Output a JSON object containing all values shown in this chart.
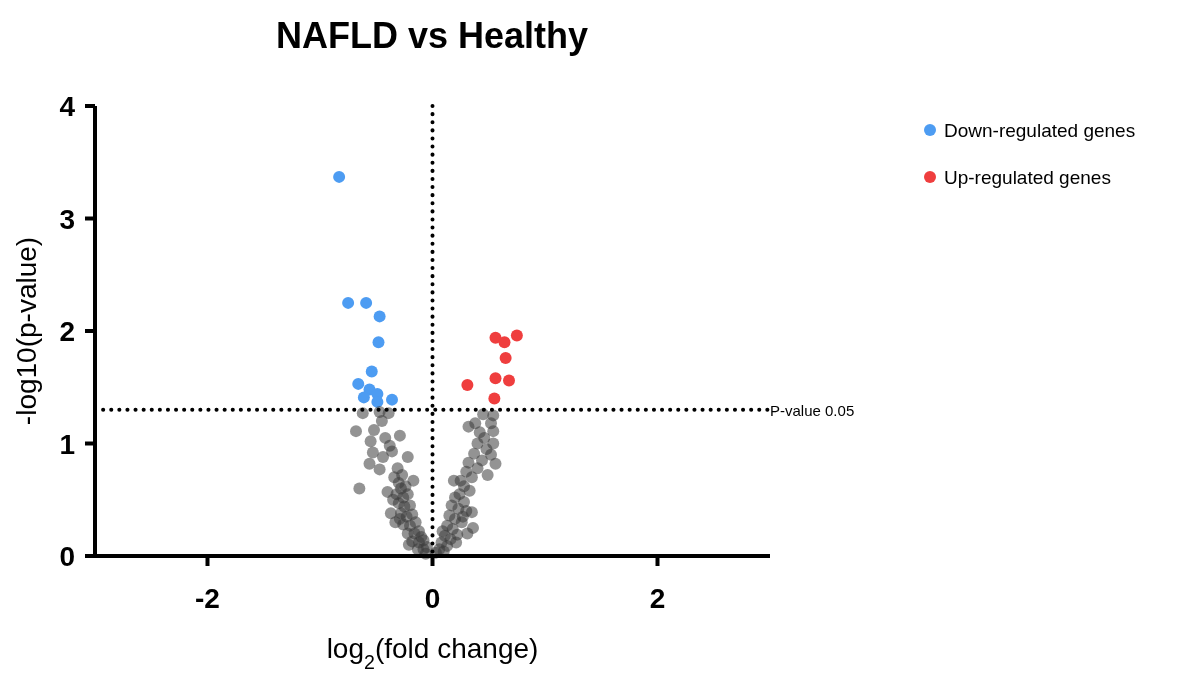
{
  "chart_data": {
    "type": "scatter",
    "title": "NAFLD vs Healthy",
    "xlabel": "log$_{2}$(fold change)",
    "ylabel": "-log10(p-value)",
    "xlim": [
      -3,
      3
    ],
    "xticks": [
      -2,
      0,
      2
    ],
    "ylim": [
      0,
      4
    ],
    "yticks": [
      0,
      1,
      2,
      3,
      4
    ],
    "marker": "circle",
    "legend": "top right",
    "grid": false,
    "ref_lines": [
      {
        "axis": "x",
        "value": 0,
        "line_style": "dotted",
        "color": "#000000"
      },
      {
        "axis": "y",
        "value": 1.301,
        "label": "P-value 0.05",
        "line_style": "dotted",
        "color": "#000000"
      }
    ],
    "series": [
      {
        "name": "Down-regulated genes",
        "color": "#4d9cf2",
        "x": [
          -0.83,
          -0.75,
          -0.59,
          -0.47,
          -0.48,
          -0.54,
          -0.66,
          -0.56,
          -0.49,
          -0.61,
          -0.49,
          -0.36
        ],
        "values": [
          3.37,
          2.25,
          2.25,
          2.13,
          1.9,
          1.64,
          1.53,
          1.48,
          1.44,
          1.41,
          1.37,
          1.39
        ]
      },
      {
        "name": "Up-regulated genes",
        "color": "#ef3e3e",
        "x": [
          0.56,
          0.64,
          0.75,
          0.65,
          0.31,
          0.56,
          0.68,
          0.55
        ],
        "values": [
          1.94,
          1.9,
          1.96,
          1.76,
          1.52,
          1.58,
          1.56,
          1.4
        ]
      },
      {
        "color": "#3a3a3a",
        "x": [
          -0.68,
          -0.65,
          -0.62,
          -0.47,
          -0.39,
          -0.52,
          -0.55,
          -0.29,
          -0.53,
          -0.56,
          -0.47,
          -0.36,
          -0.22,
          -0.31,
          -0.4,
          -0.37,
          -0.33,
          -0.17,
          -0.45,
          -0.42,
          -0.38,
          -0.44,
          -0.34,
          -0.3,
          -0.28,
          -0.32,
          -0.26,
          -0.22,
          -0.3,
          -0.25,
          -0.2,
          -0.28,
          -0.23,
          -0.18,
          -0.26,
          -0.2,
          -0.15,
          -0.22,
          -0.16,
          -0.12,
          -0.18,
          -0.12,
          -0.08,
          -0.13,
          -0.08,
          -0.05,
          -0.06,
          -0.24,
          -0.27,
          -0.35,
          -0.29,
          -0.1,
          -0.21,
          0.32,
          0.38,
          0.45,
          0.54,
          0.52,
          0.54,
          0.4,
          0.54,
          0.48,
          0.52,
          0.56,
          0.49,
          0.37,
          0.32,
          0.25,
          0.19,
          0.35,
          0.36,
          0.22,
          0.42,
          0.46,
          0.3,
          0.28,
          0.33,
          0.24,
          0.2,
          0.28,
          0.17,
          0.23,
          0.3,
          0.15,
          0.2,
          0.26,
          0.13,
          0.18,
          0.11,
          0.16,
          0.08,
          0.13,
          0.06,
          0.1,
          0.03,
          0.4,
          0.35,
          0.44,
          0.27,
          0.31,
          0.09,
          0.21
        ],
        "values": [
          1.11,
          0.6,
          1.27,
          1.28,
          1.27,
          1.12,
          1.02,
          1.07,
          0.92,
          0.82,
          0.77,
          0.93,
          0.88,
          0.78,
          0.57,
          0.38,
          0.3,
          0.67,
          1.2,
          1.05,
          0.98,
          0.88,
          0.7,
          0.65,
          0.6,
          0.55,
          0.52,
          0.55,
          0.47,
          0.44,
          0.45,
          0.38,
          0.35,
          0.37,
          0.28,
          0.27,
          0.3,
          0.2,
          0.2,
          0.22,
          0.13,
          0.12,
          0.14,
          0.06,
          0.06,
          0.08,
          0.02,
          0.62,
          0.72,
          0.5,
          0.33,
          0.17,
          0.1,
          1.15,
          1.18,
          1.26,
          1.25,
          1.18,
          1.11,
          1,
          1,
          0.95,
          0.9,
          0.82,
          0.72,
          0.91,
          0.83,
          0.67,
          0.67,
          0.39,
          0.25,
          0.19,
          1.1,
          1.05,
          0.75,
          0.62,
          0.58,
          0.55,
          0.52,
          0.48,
          0.45,
          0.42,
          0.4,
          0.36,
          0.33,
          0.3,
          0.27,
          0.24,
          0.18,
          0.15,
          0.12,
          0.09,
          0.06,
          0.04,
          0.03,
          0.78,
          0.7,
          0.85,
          0.35,
          0.2,
          0.22,
          0.12
        ]
      }
    ]
  }
}
